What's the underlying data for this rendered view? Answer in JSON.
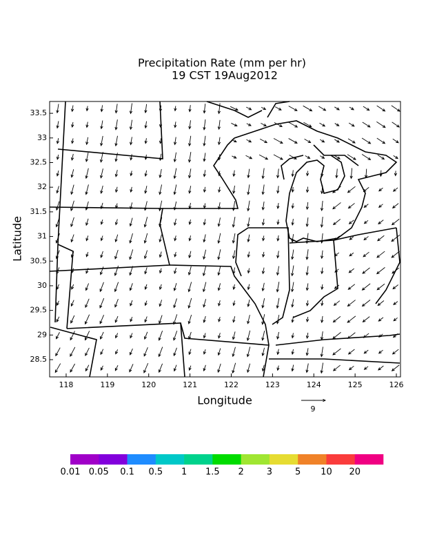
{
  "chart_data": {
    "type": "vector",
    "title": "Precipitation Rate (mm per hr)",
    "subtitle": "19 CST 19Aug2012",
    "xlabel": "Longitude",
    "ylabel": "Latitude",
    "xlim": [
      117.6,
      126.1
    ],
    "ylim": [
      28.15,
      33.74
    ],
    "xticks": [
      118,
      119,
      120,
      121,
      122,
      123,
      124,
      125,
      126
    ],
    "yticks": [
      28.5,
      29,
      29.5,
      30,
      30.5,
      31,
      31.5,
      32,
      32.5,
      33,
      33.5
    ],
    "reference_vector": 9,
    "colorbar": {
      "levels": [
        0.01,
        0.05,
        0.1,
        0.5,
        1,
        1.5,
        2,
        3,
        5,
        10,
        20
      ],
      "colors": [
        "#a000c8",
        "#8200dc",
        "#1e8cff",
        "#00c8c8",
        "#00d28c",
        "#00dc00",
        "#a0e632",
        "#e6dc32",
        "#f08228",
        "#fa3c3c",
        "#f00082"
      ]
    }
  }
}
